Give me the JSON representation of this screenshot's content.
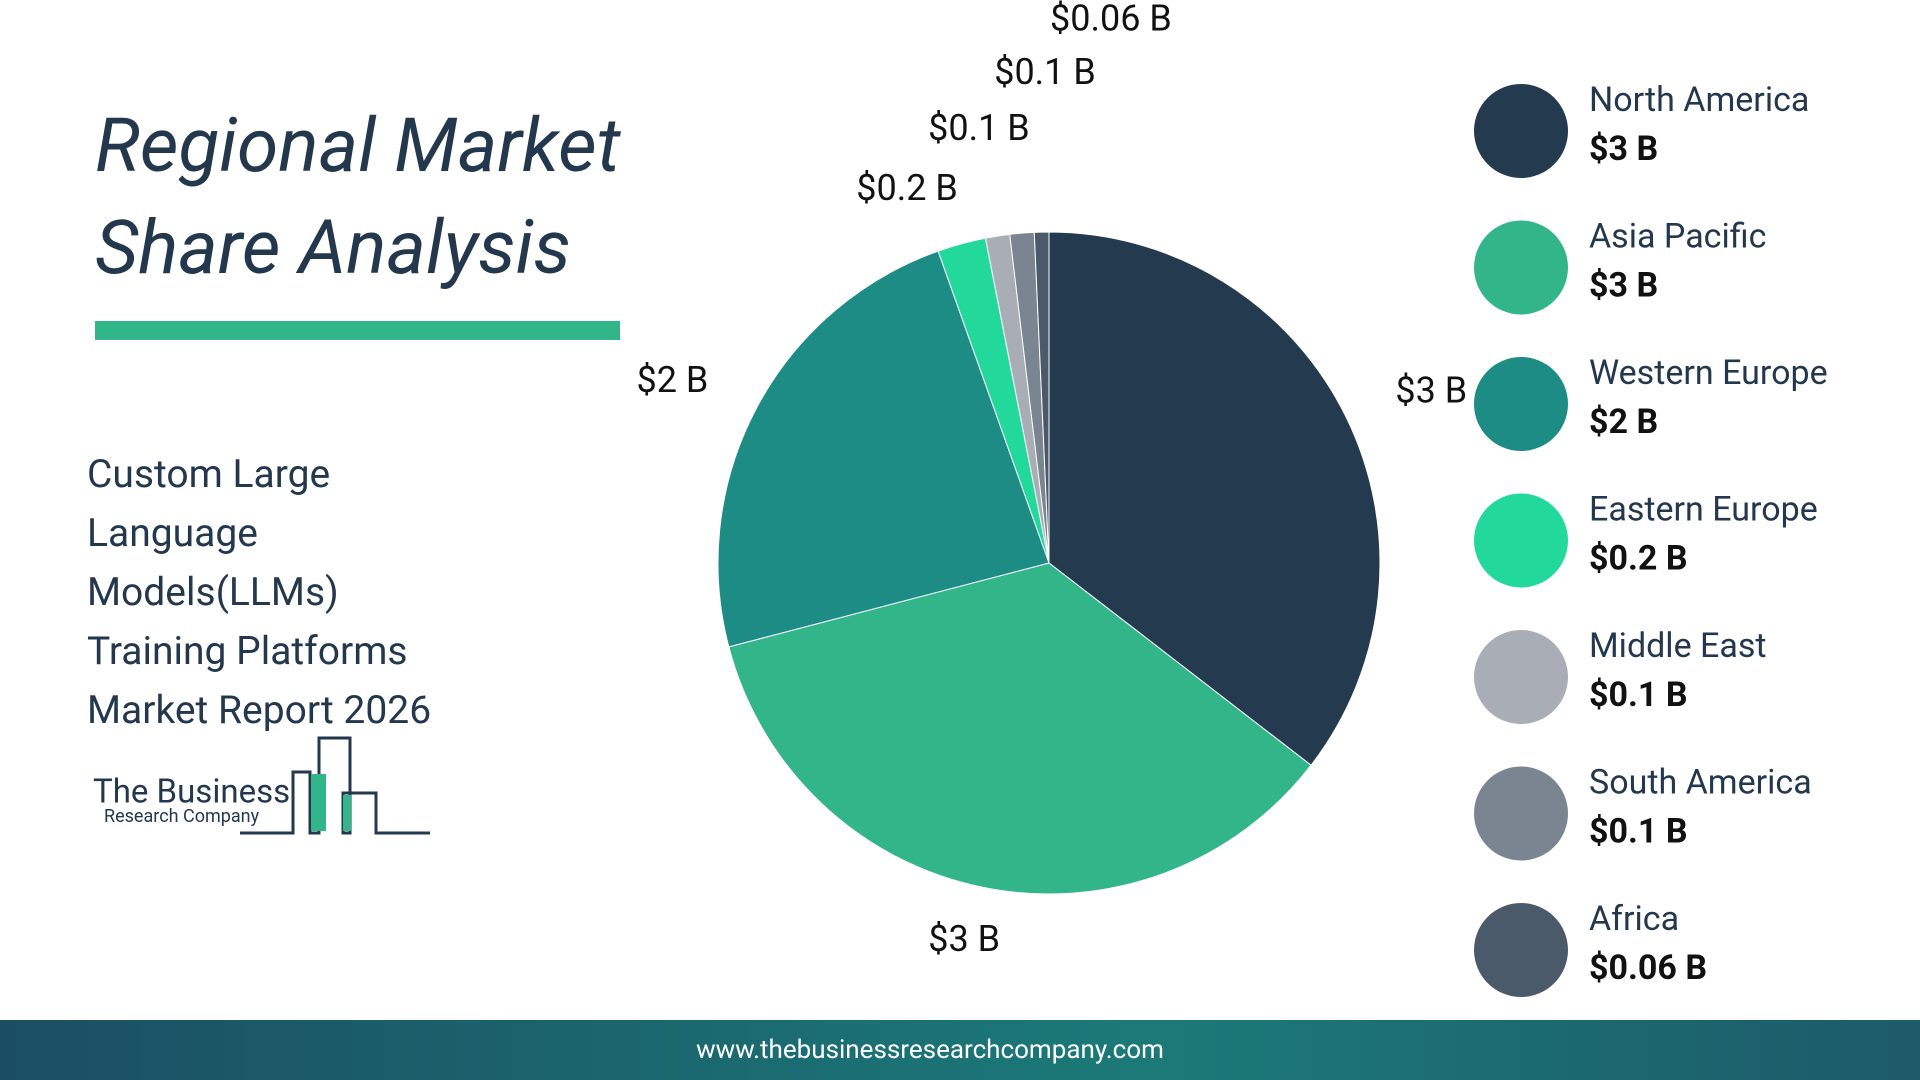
{
  "chart_data": {
    "type": "pie",
    "title": "Regional Market Share Analysis",
    "subtitle": "Custom Large Language Models(LLMs) Training Platforms Market Report 2026",
    "categories": [
      "North America",
      "Asia Pacific",
      "Western Europe",
      "Eastern Europe",
      "Middle East",
      "South America",
      "Africa"
    ],
    "values": [
      3,
      3,
      2,
      0.2,
      0.1,
      0.1,
      0.06
    ],
    "value_labels": [
      "$3 B",
      "$3 B",
      "$2 B",
      "$0.2 B",
      "$0.1 B",
      "$0.1 B",
      "$0.06 B"
    ],
    "colors": [
      "#243a4f",
      "#33b58a",
      "#1c8c84",
      "#22d99b",
      "#a9adb5",
      "#7a8591",
      "#4b5a6b"
    ]
  },
  "logo": {
    "line1": "The Business",
    "line2": "Research Company"
  },
  "footer": "www.thebusinessresearchcompany.com"
}
